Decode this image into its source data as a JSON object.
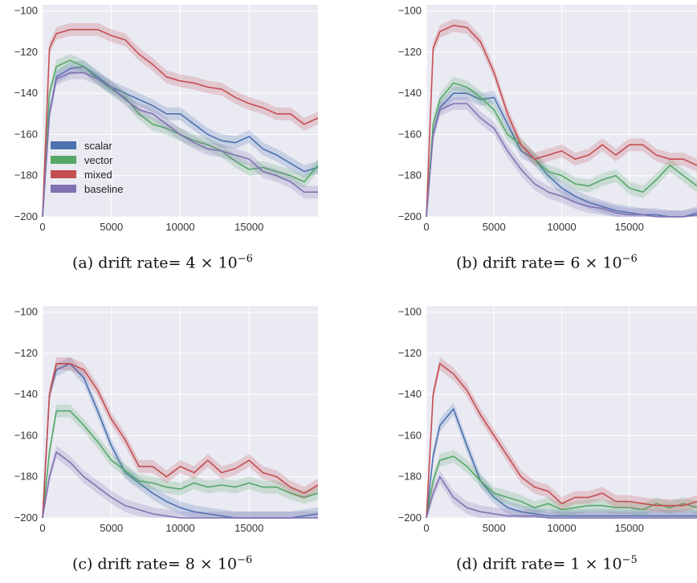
{
  "colors": {
    "scalar": "#4c72b0",
    "vector": "#55a868",
    "mixed": "#c44e52",
    "baseline": "#8172b2",
    "plot_bg": "#eaeaf2",
    "grid": "#ffffff"
  },
  "legend": [
    "scalar",
    "vector",
    "mixed",
    "baseline"
  ],
  "chart_data": [
    {
      "type": "line",
      "caption_prefix": "(a) drift rate=",
      "caption_value": "4 × 10",
      "caption_exp": "−6",
      "xlim": [
        0,
        20000
      ],
      "ylim": [
        -200,
        -97
      ],
      "xticks": [
        0,
        5000,
        10000,
        15000
      ],
      "yticks": [
        -100,
        -120,
        -140,
        -160,
        -180,
        -200
      ],
      "grid": true,
      "legend_position": "lower-left",
      "x": [
        0,
        500,
        1000,
        2000,
        3000,
        4000,
        5000,
        6000,
        7000,
        8000,
        9000,
        10000,
        11000,
        12000,
        13000,
        14000,
        15000,
        16000,
        17000,
        18000,
        19000,
        20000
      ],
      "series": [
        {
          "name": "scalar",
          "values": [
            -200,
            -150,
            -132,
            -128,
            -127,
            -132,
            -137,
            -140,
            -143,
            -146,
            -150,
            -150,
            -155,
            -160,
            -163,
            -164,
            -161,
            -167,
            -170,
            -174,
            -178,
            -176
          ]
        },
        {
          "name": "vector",
          "values": [
            -200,
            -140,
            -127,
            -124,
            -127,
            -133,
            -138,
            -142,
            -150,
            -155,
            -157,
            -160,
            -163,
            -165,
            -168,
            -173,
            -177,
            -176,
            -178,
            -180,
            -183,
            -175
          ]
        },
        {
          "name": "mixed",
          "values": [
            -200,
            -118,
            -111,
            -109,
            -109,
            -109,
            -112,
            -114,
            -121,
            -126,
            -132,
            -134,
            -135,
            -137,
            -138,
            -142,
            -145,
            -147,
            -150,
            -150,
            -155,
            -152
          ]
        },
        {
          "name": "baseline",
          "values": [
            -200,
            -150,
            -133,
            -130,
            -130,
            -133,
            -137,
            -143,
            -148,
            -150,
            -155,
            -160,
            -164,
            -167,
            -168,
            -170,
            -172,
            -178,
            -180,
            -183,
            -188,
            -188
          ]
        }
      ]
    },
    {
      "type": "line",
      "caption_prefix": "(b) drift rate=",
      "caption_value": "6 × 10",
      "caption_exp": "−6",
      "xlim": [
        0,
        20000
      ],
      "ylim": [
        -200,
        -97
      ],
      "xticks": [
        0,
        5000,
        10000,
        15000
      ],
      "yticks": [
        -100,
        -120,
        -140,
        -160,
        -180,
        -200
      ],
      "grid": true,
      "legend_position": "none",
      "x": [
        0,
        500,
        1000,
        2000,
        3000,
        4000,
        5000,
        6000,
        7000,
        8000,
        9000,
        10000,
        11000,
        12000,
        13000,
        14000,
        15000,
        16000,
        17000,
        18000,
        19000,
        20000
      ],
      "series": [
        {
          "name": "scalar",
          "values": [
            -200,
            -160,
            -147,
            -140,
            -140,
            -143,
            -142,
            -155,
            -168,
            -172,
            -180,
            -186,
            -190,
            -193,
            -195,
            -197,
            -198,
            -199,
            -199,
            -200,
            -200,
            -199
          ]
        },
        {
          "name": "vector",
          "values": [
            -200,
            -155,
            -143,
            -135,
            -137,
            -142,
            -148,
            -160,
            -165,
            -172,
            -178,
            -180,
            -184,
            -185,
            -182,
            -180,
            -186,
            -188,
            -182,
            -175,
            -180,
            -185
          ]
        },
        {
          "name": "mixed",
          "values": [
            -200,
            -118,
            -110,
            -107,
            -108,
            -115,
            -130,
            -150,
            -165,
            -172,
            -170,
            -168,
            -172,
            -170,
            -165,
            -170,
            -165,
            -165,
            -170,
            -172,
            -172,
            -175
          ]
        },
        {
          "name": "baseline",
          "values": [
            -200,
            -160,
            -148,
            -145,
            -145,
            -152,
            -157,
            -168,
            -177,
            -184,
            -188,
            -190,
            -193,
            -195,
            -196,
            -198,
            -199,
            -199,
            -200,
            -200,
            -200,
            -198
          ]
        }
      ]
    },
    {
      "type": "line",
      "caption_prefix": "(c) drift rate=",
      "caption_value": "8 × 10",
      "caption_exp": "−6",
      "xlim": [
        0,
        20000
      ],
      "ylim": [
        -200,
        -97
      ],
      "xticks": [
        0,
        5000,
        10000,
        15000
      ],
      "yticks": [
        -100,
        -120,
        -140,
        -160,
        -180,
        -200
      ],
      "grid": true,
      "legend_position": "none",
      "x": [
        0,
        500,
        1000,
        2000,
        3000,
        4000,
        5000,
        6000,
        7000,
        8000,
        9000,
        10000,
        11000,
        12000,
        13000,
        14000,
        15000,
        16000,
        17000,
        18000,
        19000,
        20000
      ],
      "series": [
        {
          "name": "scalar",
          "values": [
            -200,
            -140,
            -128,
            -125,
            -132,
            -148,
            -165,
            -178,
            -183,
            -188,
            -192,
            -195,
            -197,
            -198,
            -199,
            -200,
            -200,
            -200,
            -200,
            -200,
            -199,
            -198
          ]
        },
        {
          "name": "vector",
          "values": [
            -200,
            -168,
            -148,
            -148,
            -155,
            -163,
            -172,
            -177,
            -182,
            -183,
            -185,
            -186,
            -183,
            -185,
            -184,
            -185,
            -183,
            -185,
            -185,
            -188,
            -190,
            -188
          ]
        },
        {
          "name": "mixed",
          "values": [
            -200,
            -140,
            -125,
            -125,
            -128,
            -138,
            -152,
            -162,
            -175,
            -175,
            -180,
            -175,
            -178,
            -172,
            -178,
            -176,
            -172,
            -178,
            -180,
            -185,
            -188,
            -184
          ]
        },
        {
          "name": "baseline",
          "values": [
            -200,
            -180,
            -168,
            -173,
            -180,
            -185,
            -190,
            -194,
            -196,
            -198,
            -199,
            -200,
            -200,
            -200,
            -200,
            -200,
            -200,
            -200,
            -200,
            -200,
            -200,
            -200
          ]
        }
      ]
    },
    {
      "type": "line",
      "caption_prefix": "(d) drift rate=",
      "caption_value": "1 × 10",
      "caption_exp": "−5",
      "xlim": [
        0,
        20000
      ],
      "ylim": [
        -200,
        -97
      ],
      "xticks": [
        0,
        5000,
        10000,
        15000
      ],
      "yticks": [
        -100,
        -120,
        -140,
        -160,
        -180,
        -200
      ],
      "grid": true,
      "legend_position": "none",
      "x": [
        0,
        500,
        1000,
        2000,
        3000,
        4000,
        5000,
        6000,
        7000,
        8000,
        9000,
        10000,
        11000,
        12000,
        13000,
        14000,
        15000,
        16000,
        17000,
        18000,
        19000,
        20000
      ],
      "series": [
        {
          "name": "scalar",
          "values": [
            -200,
            -170,
            -155,
            -147,
            -165,
            -182,
            -190,
            -195,
            -197,
            -198,
            -199,
            -199,
            -199,
            -199,
            -199,
            -199,
            -199,
            -199,
            -199,
            -199,
            -199,
            -199
          ]
        },
        {
          "name": "vector",
          "values": [
            -200,
            -182,
            -172,
            -170,
            -175,
            -182,
            -188,
            -190,
            -192,
            -195,
            -193,
            -196,
            -195,
            -194,
            -194,
            -195,
            -195,
            -196,
            -193,
            -195,
            -193,
            -195
          ]
        },
        {
          "name": "mixed",
          "values": [
            -200,
            -140,
            -125,
            -130,
            -138,
            -150,
            -160,
            -170,
            -180,
            -185,
            -187,
            -193,
            -190,
            -190,
            -188,
            -192,
            -192,
            -193,
            -194,
            -194,
            -194,
            -192
          ]
        },
        {
          "name": "baseline",
          "values": [
            -200,
            -188,
            -180,
            -190,
            -195,
            -197,
            -198,
            -199,
            -199,
            -199,
            -200,
            -200,
            -200,
            -200,
            -200,
            -200,
            -200,
            -200,
            -200,
            -200,
            -200,
            -200
          ]
        }
      ]
    }
  ]
}
